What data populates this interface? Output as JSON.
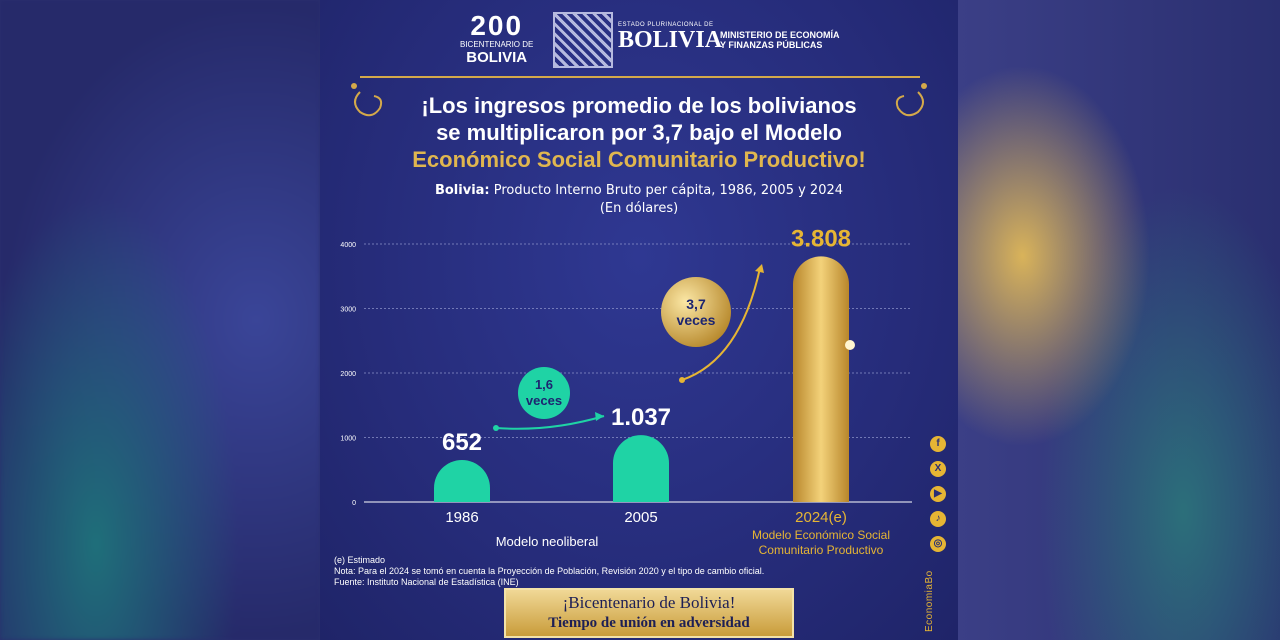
{
  "header": {
    "logo200_mark": "200",
    "logo200_caption": "BICENTENARIO DE",
    "logo200_name": "BOLIVIA",
    "estado_caption": "ESTADO PLURINACIONAL DE",
    "estado_name": "BOLIVIA",
    "ministerio_line1": "MINISTERIO DE ECONOMÍA",
    "ministerio_line2": "Y FINANZAS PÚBLICAS"
  },
  "title": {
    "line1": "¡Los ingresos promedio de los bolivianos",
    "line2": "se multiplicaron por 3,7 bajo el Modelo",
    "line3": "Económico Social Comunitario Productivo!"
  },
  "subtitle": {
    "country": "Bolivia:",
    "text": "Producto Interno Bruto per cápita, 1986, 2005 y 2024",
    "unit": "(En dólares)"
  },
  "chart_data": {
    "type": "bar",
    "categories": [
      "1986",
      "2005",
      "2024(e)"
    ],
    "values": [
      652,
      1037,
      3808
    ],
    "value_labels": [
      "652",
      "1.037",
      "3.808"
    ],
    "ylim": [
      0,
      4000
    ],
    "yticks": [
      0,
      1000,
      2000,
      3000,
      4000
    ],
    "grid": true,
    "bar_colors": [
      "#1fd3a5",
      "#1fd3a5",
      "#e3b74b"
    ],
    "multipliers": [
      {
        "label_top": "1,6",
        "label_bottom": "veces"
      },
      {
        "label_top": "3,7",
        "label_bottom": "veces"
      }
    ],
    "group_labels": {
      "left": "Modelo neoliberal",
      "right_line1": "Modelo Económico Social",
      "right_line2": "Comunitario Productivo"
    }
  },
  "notes": {
    "line1": "(e) Estimado",
    "line2": "Nota: Para el 2024 se tomó en cuenta la Proyección de Población, Revisión 2020 y el tipo de cambio oficial.",
    "line3": "Fuente: Instituto Nacional de Estadística (INE)"
  },
  "banner": {
    "line1": "¡Bicentenario de Bolivia!",
    "line2": "Tiempo de unión en adversidad"
  },
  "social": {
    "icons": [
      "facebook-icon",
      "x-icon",
      "youtube-icon",
      "tiktok-icon",
      "instagram-icon"
    ],
    "glyphs": [
      "f",
      "X",
      "▶",
      "♪",
      "◎"
    ],
    "handle": "EconomiaBo"
  },
  "colors": {
    "background": "#262c7a",
    "gold": "#e0b64f",
    "teal": "#1fd3a5"
  }
}
